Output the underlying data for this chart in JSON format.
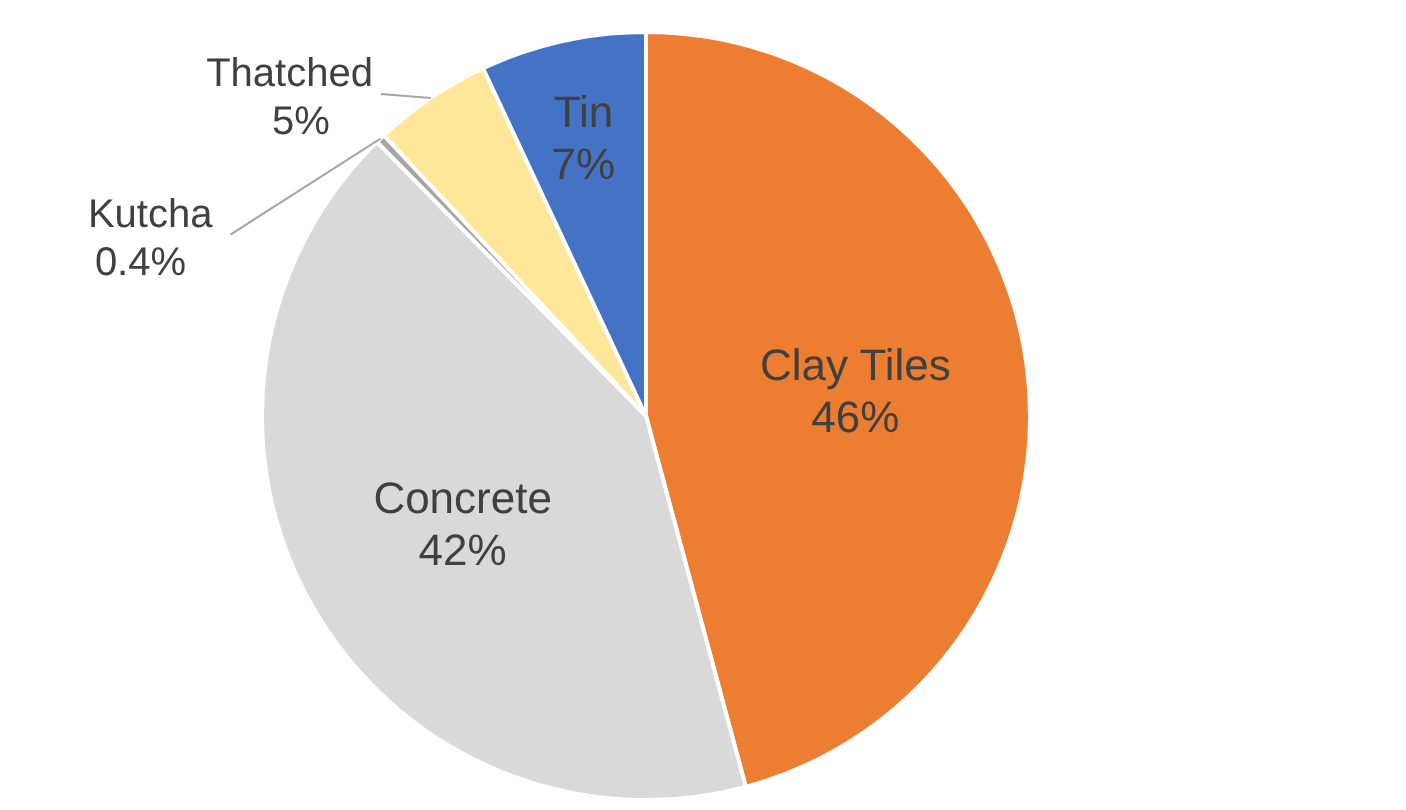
{
  "chart_data": {
    "type": "pie",
    "categories": [
      "Clay Tiles",
      "Concrete",
      "Kutcha",
      "Thatched",
      "Tin"
    ],
    "values": [
      46,
      42,
      0.4,
      5,
      7
    ],
    "value_labels": [
      "46%",
      "42%",
      "0.4%",
      "5%",
      "7%"
    ],
    "colors": [
      "#ed7d31",
      "#d9d9d9",
      "#a5a5a5",
      "#ffe699",
      "#4472c4"
    ],
    "legend": false
  }
}
